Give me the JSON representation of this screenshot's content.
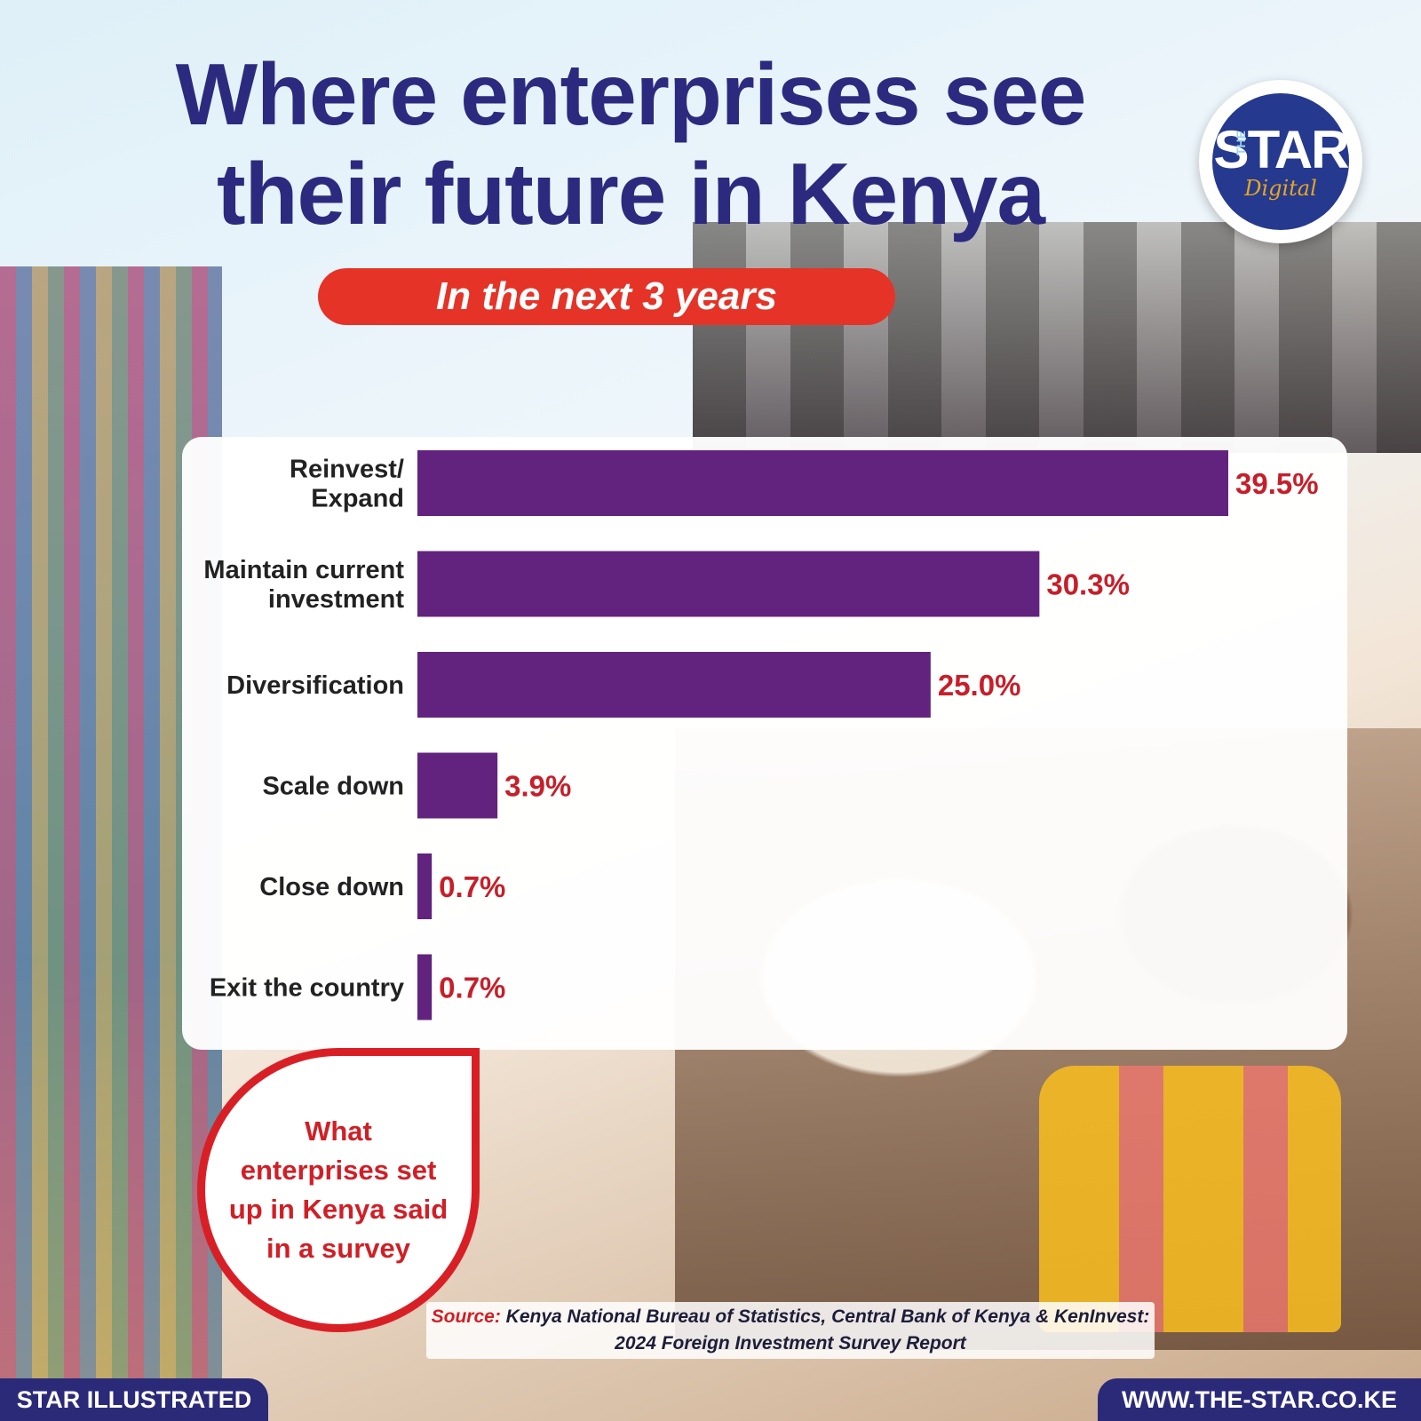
{
  "header": {
    "title_line1": "Where enterprises see",
    "title_line2": "their future in Kenya",
    "subtitle": "In the next 3 years"
  },
  "logo": {
    "the": "THE",
    "star": "STAR",
    "digital": "Digital"
  },
  "callout": "What enterprises set up in Kenya said in a survey",
  "source": {
    "label": "Source:",
    "text": "Kenya National Bureau of Statistics, Central Bank of Kenya & KenInvest: 2024 Foreign Investment Survey Report"
  },
  "footer": {
    "left": "STAR ILLUSTRATED",
    "right": "WWW.THE-STAR.CO.KE"
  },
  "colors": {
    "bar": "#62237e",
    "value_text": "#c61f2a",
    "title": "#2c2a7e",
    "pill": "#e53327"
  },
  "chart_data": {
    "type": "bar",
    "orientation": "horizontal",
    "title": "Where enterprises see their future in Kenya",
    "subtitle": "In the next 3 years",
    "unit": "%",
    "categories": [
      [
        "Reinvest/",
        "Expand"
      ],
      [
        "Maintain current",
        "investment"
      ],
      [
        "Diversification"
      ],
      [
        "Scale down"
      ],
      [
        "Close down"
      ],
      [
        "Exit the country"
      ]
    ],
    "values": [
      39.5,
      30.3,
      25.0,
      3.9,
      0.7,
      0.7
    ],
    "value_labels": [
      "39.5%",
      "30.3%",
      "25.0%",
      "3.9%",
      "0.7%",
      "0.7%"
    ],
    "xlim": [
      0,
      39.5
    ],
    "grid": false,
    "legend": "none"
  }
}
